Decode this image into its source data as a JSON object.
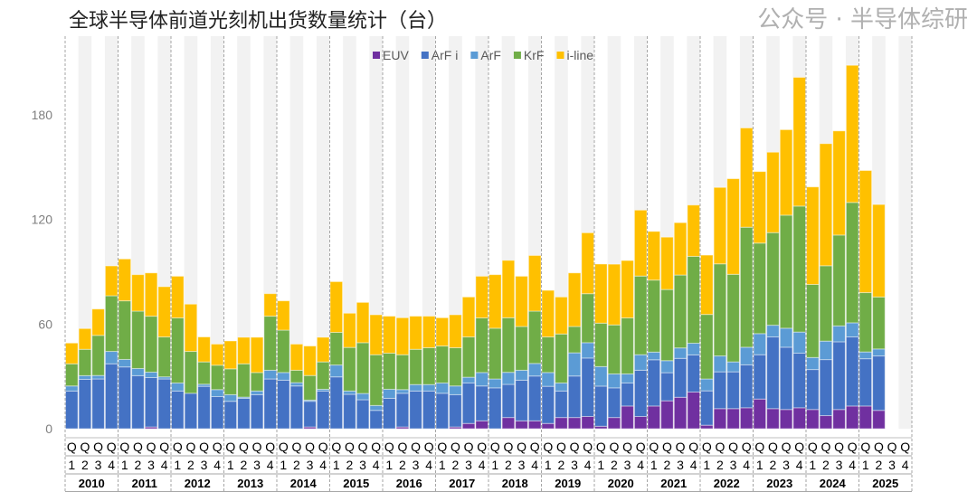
{
  "chart_data": {
    "type": "bar",
    "stacked": true,
    "title": "全球半导体前道光刻机出货数量统计（台）",
    "years": [
      "2010",
      "2011",
      "2012",
      "2013",
      "2014",
      "2015",
      "2016",
      "2017",
      "2018",
      "2019",
      "2020",
      "2021",
      "2022",
      "2023",
      "2024",
      "2025"
    ],
    "quarter_prefix": "Q",
    "quarters": [
      "1",
      "2",
      "3",
      "4"
    ],
    "ylim": [
      0,
      225
    ],
    "yticks": [
      0,
      60,
      120,
      180
    ],
    "grid": false,
    "legend_position": "top",
    "colors": {
      "EUV": "#7030a0",
      "ArF i": "#4472c4",
      "ArF": "#5b9bd5",
      "KrF": "#70ad47",
      "i-line": "#ffc000"
    },
    "band_color": "#f2f2f2",
    "series": [
      {
        "name": "EUV",
        "values": [
          0,
          0,
          0,
          0,
          0,
          0,
          1,
          0,
          0,
          0,
          0,
          0,
          0,
          0,
          0,
          0,
          0,
          0,
          1,
          0,
          0,
          0,
          0,
          0,
          0,
          1,
          0,
          0,
          0,
          1,
          3,
          4.5,
          0,
          6.4,
          4.5,
          4.5,
          3,
          6.4,
          6.4,
          7,
          1.4,
          6.4,
          13,
          7,
          13,
          16,
          18,
          21,
          2,
          11.5,
          11.5,
          12,
          17,
          11.5,
          11,
          12,
          11,
          7.5,
          11,
          13,
          13,
          10.5,
          null,
          null
        ]
      },
      {
        "name": "ArF i",
        "values": [
          21.6,
          28.3,
          28.5,
          37.2,
          35.4,
          30.4,
          28.3,
          28.5,
          21.6,
          20.3,
          24.3,
          18.4,
          15.7,
          17.4,
          19.5,
          28.5,
          27.8,
          24.5,
          14.7,
          21.6,
          29.7,
          19.7,
          16.6,
          10.5,
          17.4,
          19.3,
          21.6,
          21.6,
          20.3,
          18.5,
          23.2,
          20,
          23.4,
          19,
          23.3,
          25.7,
          21.3,
          15.2,
          23.8,
          33.5,
          23,
          17,
          13.2,
          26.5,
          26.5,
          16.1,
          22.3,
          21.3,
          19.7,
          21.1,
          21.1,
          24.6,
          25.4,
          41.1,
          35.7,
          31.3,
          22.9,
          32.1,
          38.8,
          39.6,
          27.1,
          31.2,
          null,
          null
        ]
      },
      {
        "name": "ArF",
        "values": [
          2.9,
          2.1,
          2,
          7.1,
          4.3,
          4.1,
          3.1,
          1.2,
          4.6,
          0,
          1.2,
          4,
          3.8,
          0.7,
          2.1,
          5,
          4.4,
          1.9,
          0.7,
          1,
          6.8,
          1.9,
          3.6,
          2.8,
          5.2,
          2.1,
          3.7,
          3.7,
          5.9,
          5,
          3.3,
          7.7,
          5.1,
          6.9,
          5.7,
          7.2,
          7.9,
          4.6,
          13.3,
          8.8,
          11.2,
          8,
          5.2,
          8.9,
          4.4,
          6.9,
          6,
          6.7,
          6.8,
          9.1,
          5.7,
          10.1,
          12.1,
          6.7,
          10.9,
          12.1,
          6.9,
          10.6,
          9.1,
          8.1,
          3.9,
          4,
          null,
          null
        ]
      },
      {
        "name": "KrF",
        "values": [
          12.7,
          15.1,
          23,
          31.9,
          33.6,
          32.9,
          32.1,
          22.9,
          37.3,
          24,
          12.8,
          14,
          14.8,
          19.1,
          10.6,
          31,
          24.3,
          7.1,
          14.1,
          15.7,
          18.7,
          25,
          29.1,
          29.1,
          20.7,
          20,
          20.2,
          21.1,
          21.2,
          21.9,
          23.1,
          31.3,
          29.1,
          31.3,
          25.1,
          30,
          20.4,
          28.1,
          15.1,
          28.1,
          24.9,
          28.1,
          32.1,
          45.1,
          41.3,
          40.8,
          41.8,
          49.8,
          37,
          52.8,
          50.2,
          68.8,
          51.9,
          53.1,
          64.8,
          72.2,
          41.9,
          43.2,
          52.1,
          69,
          34,
          29.8,
          null,
          null
        ]
      },
      {
        "name": "i-line",
        "values": [
          11.9,
          11.9,
          15.1,
          17.1,
          24,
          20.9,
          24.8,
          28.8,
          23.9,
          27.1,
          14.3,
          12.1,
          16,
          15.2,
          20.2,
          12.9,
          16.8,
          15,
          16.9,
          14.1,
          29.1,
          19.6,
          23.1,
          22.9,
          21.2,
          21.2,
          19,
          18.1,
          16.2,
          18.9,
          22.9,
          23.9,
          30.7,
          32.9,
          28.8,
          31.9,
          26.7,
          21.2,
          30.7,
          34.9,
          33.9,
          34.8,
          32.9,
          37.8,
          27.9,
          30,
          30,
          29.4,
          34,
          43.8,
          54.8,
          56.9,
          41,
          46.1,
          49,
          73.8,
          55.9,
          70,
          59.7,
          78.6,
          70,
          53,
          null,
          null
        ]
      }
    ]
  },
  "legend": [
    "EUV",
    "ArF i",
    "ArF",
    "KrF",
    "i-line"
  ],
  "watermark": "公众号 · 半导体综研"
}
